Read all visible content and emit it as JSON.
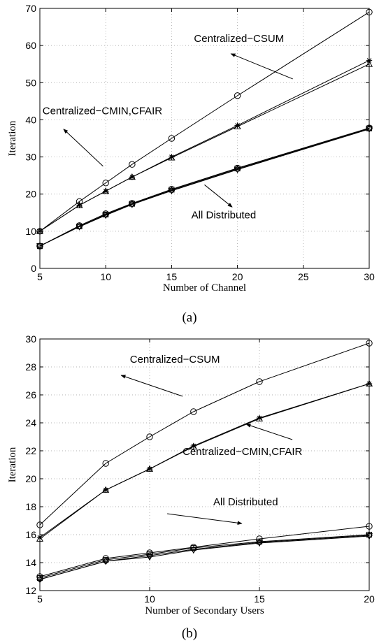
{
  "chart_data": [
    {
      "type": "line",
      "caption": "(a)",
      "xlabel": "Number of Channel",
      "ylabel": "Iteration",
      "xlim": [
        5,
        30
      ],
      "ylim": [
        0,
        70
      ],
      "xticks": [
        5,
        10,
        15,
        20,
        25,
        30
      ],
      "yticks": [
        0,
        10,
        20,
        30,
        40,
        50,
        60,
        70
      ],
      "grid": true,
      "x": [
        5,
        8,
        10,
        12,
        15,
        20,
        30
      ],
      "series": [
        {
          "marker": "circle",
          "values": [
            10,
            18,
            23,
            28,
            35,
            46.5,
            69
          ]
        },
        {
          "marker": "star",
          "values": [
            10,
            17,
            20.8,
            24.6,
            30,
            38.5,
            56
          ]
        },
        {
          "marker": "triangle",
          "values": [
            10,
            17,
            20.8,
            24.6,
            29.8,
            38.2,
            55
          ]
        },
        {
          "marker": "circle",
          "values": [
            6,
            11.5,
            14.7,
            17.5,
            21.3,
            27,
            37.8
          ]
        },
        {
          "marker": "square",
          "values": [
            6,
            11.3,
            14.5,
            17.4,
            21.2,
            26.9,
            37.7
          ]
        },
        {
          "marker": "diamond",
          "values": [
            6,
            11.3,
            14.4,
            17.3,
            21,
            26.7,
            37.6
          ]
        },
        {
          "marker": "triangle-down",
          "values": [
            6,
            11.2,
            14.3,
            17.2,
            20.9,
            26.6,
            37.5
          ]
        }
      ],
      "annotations": [
        {
          "text": "Centralized−CSUM",
          "text_at": [
            16.7,
            61
          ],
          "arrow_from": [
            24.2,
            51
          ],
          "arrow_to": [
            19.5,
            57.8
          ]
        },
        {
          "text": "Centralized−CMIN,CFAIR",
          "text_at": [
            5.2,
            41.5
          ],
          "arrow_from": [
            9.8,
            27.5
          ],
          "arrow_to": [
            6.8,
            37.5
          ]
        },
        {
          "text": "All Distributed",
          "text_at": [
            16.5,
            13.5
          ],
          "arrow_from": [
            17.5,
            22.5
          ],
          "arrow_to": [
            19.6,
            16.5
          ]
        }
      ]
    },
    {
      "type": "line",
      "caption": "(b)",
      "xlabel": "Number of Secondary Users",
      "ylabel": "Iteration",
      "xlim": [
        5,
        20
      ],
      "ylim": [
        12,
        30
      ],
      "xticks": [
        5,
        10,
        15,
        20
      ],
      "yticks": [
        12,
        14,
        16,
        18,
        20,
        22,
        24,
        26,
        28,
        30
      ],
      "grid": true,
      "x": [
        5,
        8,
        10,
        12,
        15,
        20
      ],
      "series": [
        {
          "marker": "circle",
          "values": [
            16.7,
            21.1,
            23,
            24.8,
            26.95,
            29.7
          ]
        },
        {
          "marker": "star",
          "values": [
            15.8,
            19.2,
            20.7,
            22.35,
            24.35,
            26.8
          ]
        },
        {
          "marker": "triangle",
          "values": [
            15.7,
            19.2,
            20.7,
            22.3,
            24.3,
            26.8
          ]
        },
        {
          "marker": "circle",
          "values": [
            13,
            14.3,
            14.7,
            15.1,
            15.7,
            16.6
          ]
        },
        {
          "marker": "square",
          "values": [
            12.9,
            14.2,
            14.6,
            15.05,
            15.5,
            16
          ]
        },
        {
          "marker": "diamond",
          "values": [
            12.8,
            14.1,
            14.5,
            14.95,
            15.45,
            15.95
          ]
        },
        {
          "marker": "triangle-down",
          "values": [
            12.8,
            14.1,
            14.4,
            14.9,
            15.4,
            15.9
          ]
        }
      ],
      "annotations": [
        {
          "text": "Centralized−CSUM",
          "text_at": [
            9.1,
            28.3
          ],
          "arrow_from": [
            11.5,
            25.9
          ],
          "arrow_to": [
            8.7,
            27.4
          ]
        },
        {
          "text": "Centralized−CMIN,CFAIR",
          "text_at": [
            11.5,
            21.7
          ],
          "arrow_from": [
            16.5,
            22.8
          ],
          "arrow_to": [
            14.4,
            23.9
          ]
        },
        {
          "text": "All Distributed",
          "text_at": [
            12.9,
            18.1
          ],
          "arrow_from": [
            10.8,
            17.5
          ],
          "arrow_to": [
            14.2,
            16.8
          ]
        }
      ]
    }
  ]
}
